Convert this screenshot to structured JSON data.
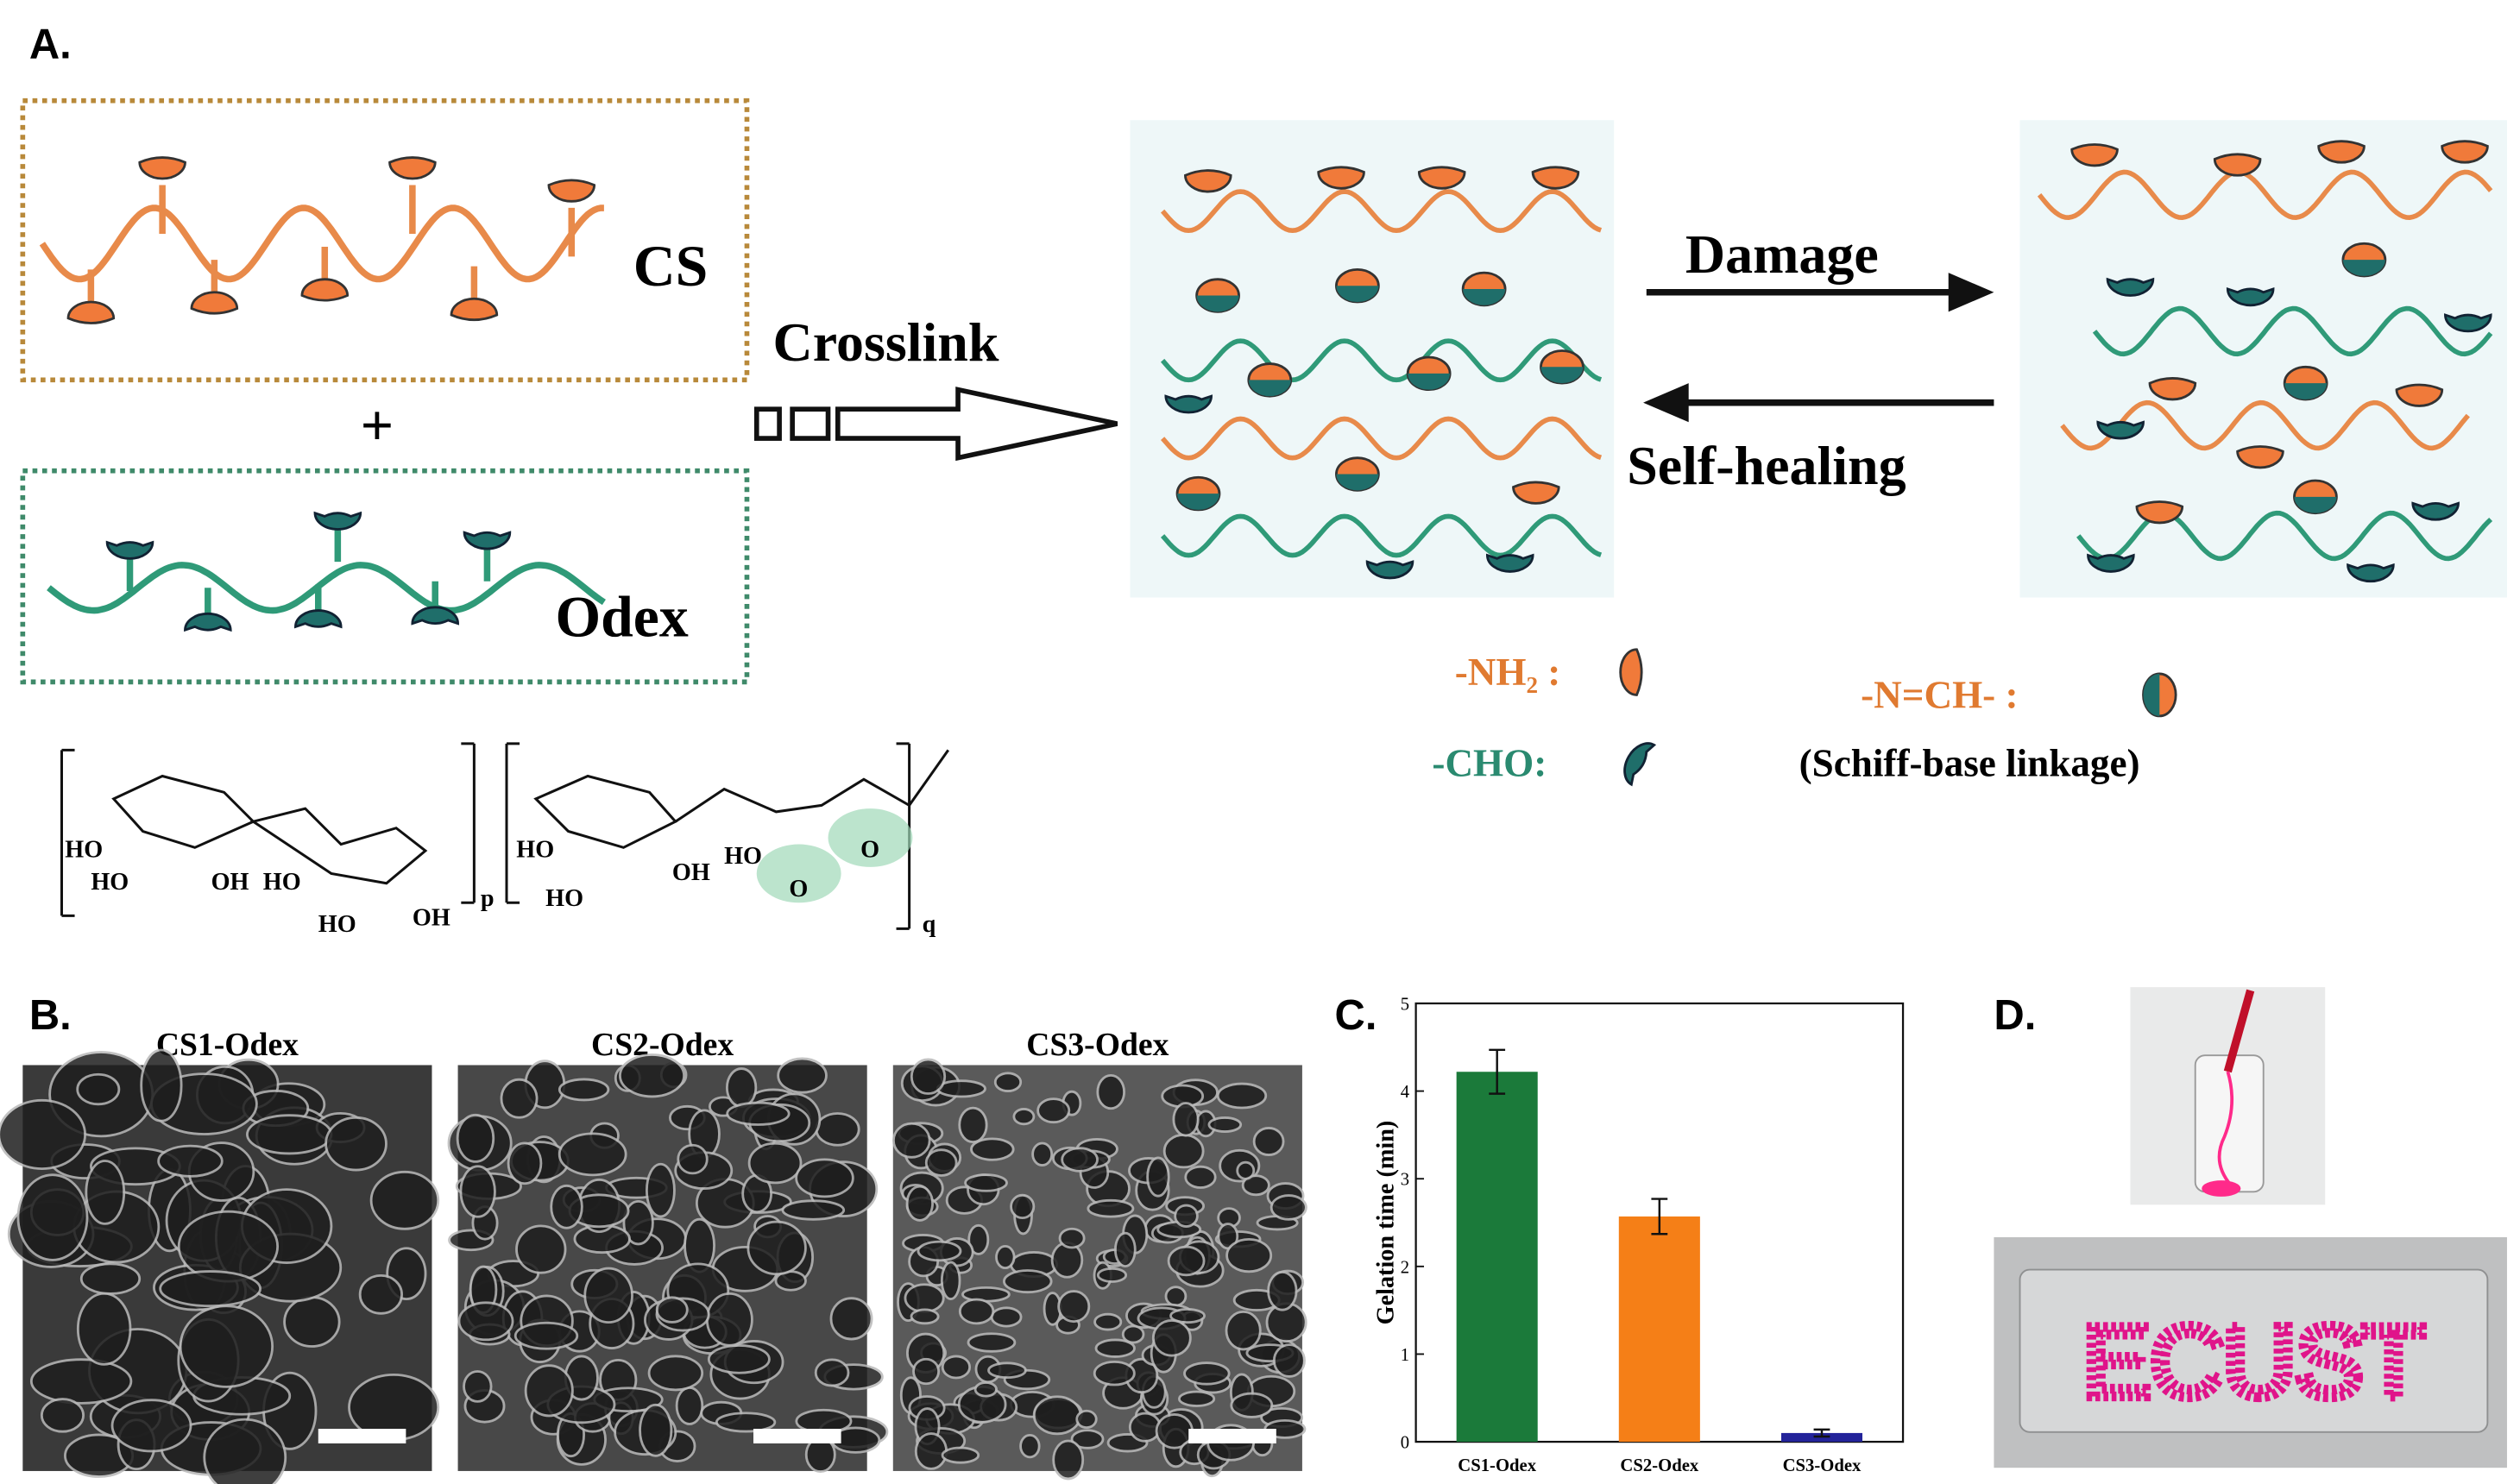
{
  "panels": {
    "a": "A.",
    "b": "B.",
    "c": "C.",
    "d": "D."
  },
  "scheme": {
    "cs": "CS",
    "plus": "+",
    "odex": "Odex",
    "crosslink": "Crosslink",
    "damage": "Damage",
    "self_healing": "Self-healing"
  },
  "legend": {
    "nh2": "-NH₂ :",
    "cho": "-CHO:",
    "imine": "-N=CH-  :",
    "imine_note": "(Schiff-base linkage)"
  },
  "structure": {
    "labels": [
      "HO",
      "HO",
      "OH",
      "HO",
      "HO",
      "OH",
      "p",
      "HO",
      "HO",
      "OH",
      "HO",
      "O",
      "O",
      "q"
    ]
  },
  "sem": {
    "titles": [
      "CS1-Odex",
      "CS2-Odex",
      "CS3-Odex"
    ]
  },
  "photo": {
    "text": "ECUST"
  },
  "chart_data": {
    "type": "bar",
    "y_label": "Gelation time (min)",
    "categories": [
      "CS1-Odex",
      "CS2-Odex",
      "CS3-Odex"
    ],
    "values": [
      4.22,
      2.57,
      0.1
    ],
    "errors": [
      0.25,
      0.2,
      0.04
    ],
    "colors": [
      "#1b7a3a",
      "#f57f17",
      "#23239a"
    ],
    "ylim": [
      0,
      5
    ],
    "yticks": [
      0,
      1,
      2,
      3,
      4,
      5
    ]
  }
}
